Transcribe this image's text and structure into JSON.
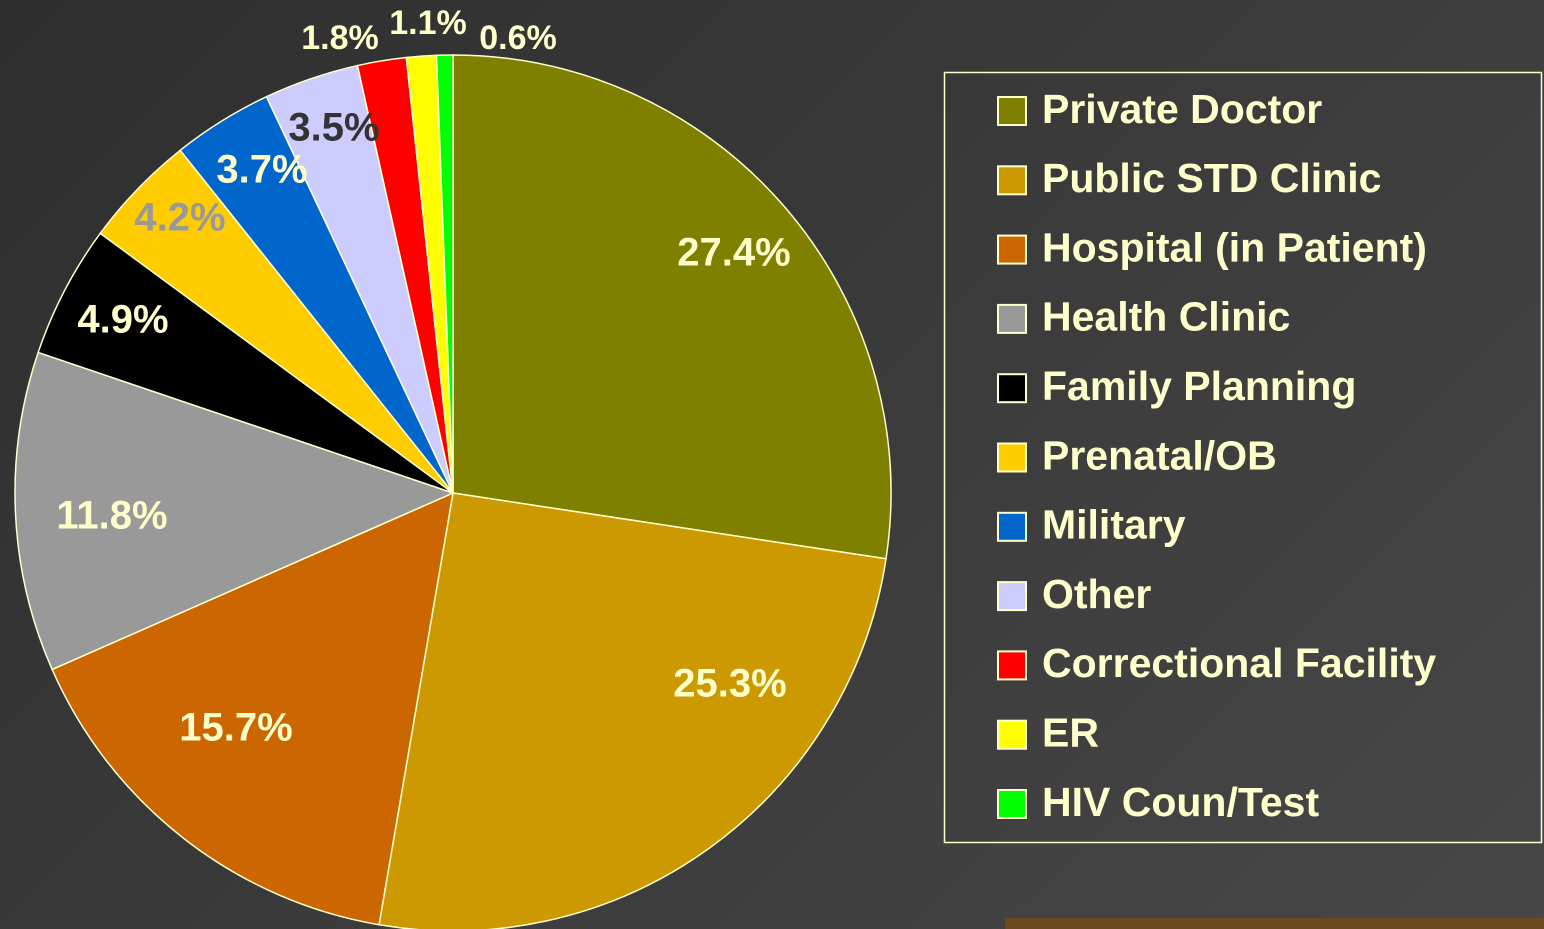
{
  "chart_data": {
    "type": "pie",
    "categories": [
      "Private Doctor",
      "Public STD Clinic",
      "Hospital (in Patient)",
      "Health Clinic",
      "Family Planning",
      "Prenatal/OB",
      "Military",
      "Other",
      "Correctional Facility",
      "ER",
      "HIV Coun/Test"
    ],
    "values": [
      27.4,
      25.3,
      15.7,
      11.8,
      4.9,
      4.2,
      3.7,
      3.5,
      1.8,
      1.1,
      0.6
    ],
    "value_labels": [
      "27.4%",
      "25.3%",
      "15.7%",
      "11.8%",
      "4.9%",
      "4.2%",
      "3.7%",
      "3.5%",
      "1.8%",
      "1.1%",
      "0.6%"
    ],
    "colors": [
      "#808000",
      "#cc9900",
      "#cc6600",
      "#999999",
      "#000000",
      "#ffcc00",
      "#0066cc",
      "#ccccff",
      "#ff0000",
      "#ffff00",
      "#00ff00"
    ],
    "label_colors": [
      "#ffffcc",
      "#ffffcc",
      "#ffffcc",
      "#ffffcc",
      "#ffffcc",
      "#999999",
      "#ffffcc",
      "#333333",
      "#ffffcc",
      "#ffffcc",
      "#ffffcc"
    ],
    "legend": "right"
  }
}
